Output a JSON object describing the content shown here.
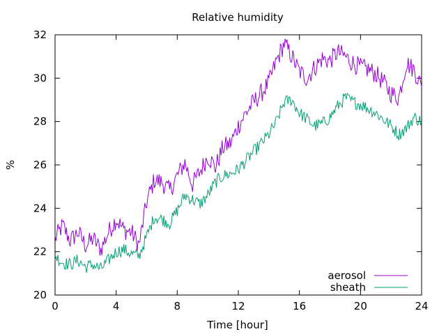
{
  "chart_data": {
    "type": "line",
    "title": "Relative humidity",
    "xlabel": "Time [hour]",
    "ylabel": "%",
    "xlim": [
      0,
      24
    ],
    "ylim": [
      20,
      32
    ],
    "xticks": [
      0,
      4,
      8,
      12,
      16,
      20,
      24
    ],
    "yticks": [
      20,
      22,
      24,
      26,
      28,
      30,
      32
    ],
    "grid": false,
    "legend_position": "bottom-right",
    "series": [
      {
        "name": "aerosol",
        "color": "#9400d3",
        "x": [
          0,
          0.5,
          1,
          1.5,
          2,
          2.5,
          3,
          3.5,
          4,
          4.5,
          5,
          5.5,
          6,
          6.5,
          7,
          7.5,
          8,
          8.5,
          9,
          9.5,
          10,
          10.5,
          11,
          11.5,
          12,
          12.5,
          13,
          13.5,
          14,
          14.5,
          15,
          15.5,
          16,
          16.5,
          17,
          17.5,
          18,
          18.5,
          19,
          19.5,
          20,
          20.5,
          21,
          21.5,
          22,
          22.5,
          23,
          23.5,
          24
        ],
        "y": [
          22.6,
          23.2,
          22.5,
          22.9,
          22.3,
          22.6,
          22.1,
          22.9,
          23.5,
          23.0,
          22.9,
          22.3,
          24.3,
          25.3,
          25.2,
          24.8,
          25.5,
          26.1,
          25.1,
          25.7,
          26.4,
          25.9,
          26.8,
          27.0,
          27.8,
          28.4,
          28.9,
          29.3,
          29.8,
          30.8,
          31.6,
          31.0,
          30.3,
          30.0,
          30.5,
          30.9,
          30.8,
          31.2,
          31.0,
          30.7,
          30.5,
          30.4,
          30.2,
          29.8,
          29.3,
          29.1,
          30.7,
          30.4,
          29.6
        ]
      },
      {
        "name": "sheath",
        "color": "#009e73",
        "x": [
          0,
          0.5,
          1,
          1.5,
          2,
          2.5,
          3,
          3.5,
          4,
          4.5,
          5,
          5.5,
          6,
          6.5,
          7,
          7.5,
          8,
          8.5,
          9,
          9.5,
          10,
          10.5,
          11,
          11.5,
          12,
          12.5,
          13,
          13.5,
          14,
          14.5,
          15,
          15.5,
          16,
          16.5,
          17,
          17.5,
          18,
          18.5,
          19,
          19.5,
          20,
          20.5,
          21,
          21.5,
          22,
          22.5,
          23,
          23.5,
          24
        ],
        "y": [
          21.8,
          21.5,
          21.4,
          21.6,
          21.3,
          21.4,
          21.2,
          21.6,
          22.0,
          22.1,
          21.9,
          21.8,
          22.7,
          23.6,
          23.5,
          23.3,
          23.9,
          24.6,
          24.4,
          24.2,
          24.6,
          25.2,
          25.5,
          25.6,
          25.8,
          26.2,
          26.6,
          27.0,
          27.4,
          28.0,
          28.9,
          29.0,
          28.4,
          28.1,
          27.8,
          27.9,
          28.2,
          28.7,
          29.1,
          28.9,
          28.8,
          28.6,
          28.4,
          28.1,
          27.8,
          27.4,
          27.7,
          28.2,
          28.0
        ]
      }
    ]
  }
}
